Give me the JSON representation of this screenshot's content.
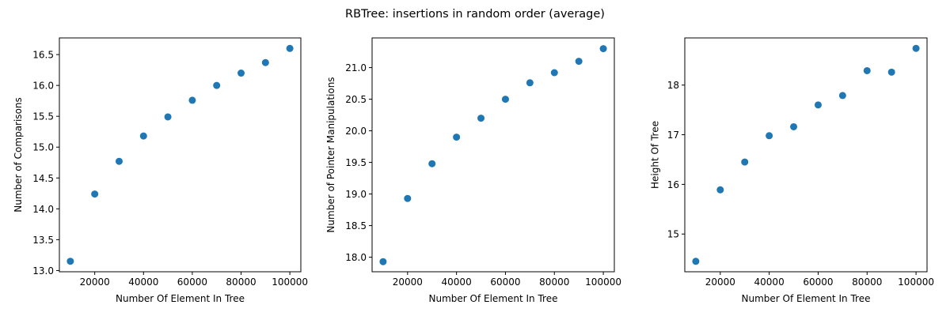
{
  "figure": {
    "title": "RBTree: insertions in random order (average)"
  },
  "chart_data": [
    {
      "type": "scatter",
      "title": "",
      "xlabel": "Number Of Element In Tree",
      "ylabel": "Number of Comparisons",
      "x": [
        10000,
        20000,
        30000,
        40000,
        50000,
        60000,
        70000,
        80000,
        90000,
        100000
      ],
      "y": [
        13.15,
        14.24,
        14.77,
        15.18,
        15.49,
        15.76,
        16.0,
        16.2,
        16.37,
        16.6
      ],
      "xticks": [
        20000,
        40000,
        60000,
        80000,
        100000
      ],
      "xtick_labels": [
        "20000",
        "40000",
        "60000",
        "80000",
        "100000"
      ],
      "yticks": [
        13.0,
        13.5,
        14.0,
        14.5,
        15.0,
        15.5,
        16.0,
        16.5
      ],
      "ytick_labels": [
        "13.0",
        "13.5",
        "14.0",
        "14.5",
        "15.0",
        "15.5",
        "16.0",
        "16.5"
      ],
      "xlim": [
        5500,
        104500
      ],
      "ylim": [
        12.98,
        16.77
      ],
      "grid": false,
      "color": "#1f77b4"
    },
    {
      "type": "scatter",
      "title": "",
      "xlabel": "Number Of Element In Tree",
      "ylabel": "Number of Pointer Manipulations",
      "x": [
        10000,
        20000,
        30000,
        40000,
        50000,
        60000,
        70000,
        80000,
        90000,
        100000
      ],
      "y": [
        17.93,
        18.93,
        19.48,
        19.9,
        20.2,
        20.5,
        20.76,
        20.92,
        21.1,
        21.3
      ],
      "xticks": [
        20000,
        40000,
        60000,
        80000,
        100000
      ],
      "xtick_labels": [
        "20000",
        "40000",
        "60000",
        "80000",
        "100000"
      ],
      "yticks": [
        18.0,
        18.5,
        19.0,
        19.5,
        20.0,
        20.5,
        21.0
      ],
      "ytick_labels": [
        "18.0",
        "18.5",
        "19.0",
        "19.5",
        "20.0",
        "20.5",
        "21.0"
      ],
      "xlim": [
        5500,
        104500
      ],
      "ylim": [
        17.77,
        21.47
      ],
      "grid": false,
      "color": "#1f77b4"
    },
    {
      "type": "scatter",
      "title": "",
      "xlabel": "Number Of Element In Tree",
      "ylabel": "Height Of Tree",
      "x": [
        10000,
        20000,
        30000,
        40000,
        50000,
        60000,
        70000,
        80000,
        90000,
        100000
      ],
      "y": [
        14.45,
        15.89,
        16.45,
        16.98,
        17.16,
        17.6,
        17.79,
        18.29,
        18.26,
        18.74
      ],
      "xticks": [
        20000,
        40000,
        60000,
        80000,
        100000
      ],
      "xtick_labels": [
        "20000",
        "40000",
        "60000",
        "80000",
        "100000"
      ],
      "yticks": [
        15,
        16,
        17,
        18
      ],
      "ytick_labels": [
        "15",
        "16",
        "17",
        "18"
      ],
      "xlim": [
        5500,
        104500
      ],
      "ylim": [
        14.24,
        18.95
      ],
      "grid": false,
      "color": "#1f77b4"
    }
  ]
}
